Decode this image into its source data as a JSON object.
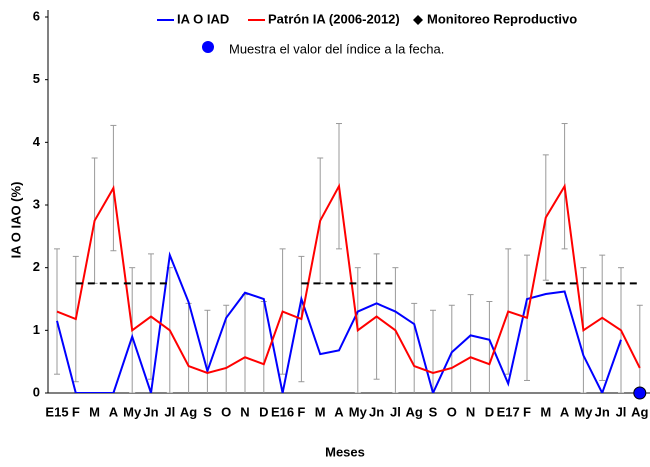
{
  "chart_data": {
    "type": "line",
    "y_label": "IA O IAO (%)",
    "x_label": "Meses",
    "categories": [
      "E15",
      "F",
      "M",
      "A",
      "My",
      "Jn",
      "Jl",
      "Ag",
      "S",
      "O",
      "N",
      "D",
      "E16",
      "F",
      "M",
      "A",
      "My",
      "Jn",
      "Jl",
      "Ag",
      "S",
      "O",
      "N",
      "D",
      "E17",
      "F",
      "M",
      "A",
      "My",
      "Jn",
      "Jl",
      "Ag"
    ],
    "ylim": [
      0,
      6
    ],
    "yticks": [
      0,
      1,
      2,
      3,
      4,
      5,
      6
    ],
    "grid": false,
    "series": [
      {
        "name": "IA O IAD",
        "color": "#0000ff",
        "style": "solid",
        "values": [
          1.15,
          0,
          0,
          0,
          0.9,
          0,
          2.2,
          1.45,
          0.35,
          1.2,
          1.6,
          1.5,
          0,
          1.5,
          0.62,
          0.68,
          1.3,
          1.43,
          1.3,
          1.1,
          0,
          0.65,
          0.92,
          0.85,
          0.15,
          1.5,
          1.58,
          1.62,
          0.6,
          0,
          0.85,
          null
        ]
      },
      {
        "name": "Patrón IA (2006-2012)",
        "color": "#ff0000",
        "style": "solid",
        "values": [
          1.3,
          1.18,
          2.75,
          3.27,
          1.0,
          1.22,
          1.0,
          0.43,
          0.32,
          0.4,
          0.57,
          0.46,
          1.3,
          1.18,
          2.75,
          3.3,
          1.0,
          1.22,
          1.0,
          0.43,
          0.32,
          0.4,
          0.57,
          0.46,
          1.3,
          1.2,
          2.8,
          3.3,
          1.0,
          1.2,
          1.0,
          0.4
        ],
        "errors": [
          1,
          1,
          1,
          1,
          1,
          1,
          1,
          1,
          1,
          1,
          1,
          1,
          1,
          1,
          1,
          1,
          1,
          1,
          1,
          1,
          1,
          1,
          1,
          1,
          1,
          1,
          1,
          1,
          1,
          1,
          1,
          1
        ],
        "error_color": "#999999"
      },
      {
        "name": "Monitoreo Reproductivo",
        "color": "#000000",
        "style": "dashed",
        "values": [
          null,
          1.75,
          1.75,
          1.75,
          1.75,
          1.75,
          1.75,
          null,
          null,
          null,
          null,
          null,
          null,
          1.75,
          1.75,
          1.75,
          1.75,
          1.75,
          1.75,
          null,
          null,
          null,
          null,
          null,
          null,
          null,
          1.75,
          1.75,
          1.75,
          1.75,
          1.75,
          1.75
        ]
      },
      {
        "name": "Muestra el valor del índice a la fecha.",
        "color": "#0000ff",
        "style": "dot",
        "values": [
          null,
          null,
          null,
          null,
          null,
          null,
          null,
          null,
          null,
          null,
          null,
          null,
          null,
          null,
          null,
          null,
          null,
          null,
          null,
          null,
          null,
          null,
          null,
          null,
          null,
          null,
          null,
          null,
          null,
          null,
          null,
          0
        ]
      }
    ]
  }
}
